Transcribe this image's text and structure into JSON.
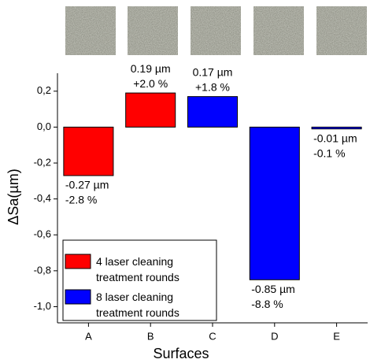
{
  "chart_data": {
    "type": "bar",
    "x_label": "Surfaces",
    "y_label": "ΔSa(µm)",
    "categories": [
      "A",
      "B",
      "C",
      "D",
      "E"
    ],
    "series": [
      {
        "name": "4 laser cleaning treatment rounds",
        "color": "#ff0000",
        "values": [
          -0.27,
          0.19,
          null,
          null,
          null
        ],
        "value_labels": [
          "-0.27 µm",
          "0.19 µm",
          null,
          null,
          null
        ],
        "percent_labels": [
          "-2.8 %",
          "+2.0 %",
          null,
          null,
          null
        ]
      },
      {
        "name": "8 laser cleaning treatment rounds",
        "color": "#0000ff",
        "values": [
          null,
          null,
          0.17,
          -0.85,
          -0.01
        ],
        "value_labels": [
          null,
          null,
          "0.17 µm",
          "-0.85 µm",
          "-0.01 µm"
        ],
        "percent_labels": [
          null,
          null,
          "+1.8 %",
          "-8.8 %",
          "-0.1 %"
        ]
      }
    ],
    "ylim": [
      -1.09,
      0.3
    ],
    "yticks": [
      {
        "value": 0.2,
        "label": "0,2"
      },
      {
        "value": 0,
        "label": "0,0"
      },
      {
        "value": -0.2,
        "label": "-0,2"
      },
      {
        "value": -0.4,
        "label": "-0,4"
      },
      {
        "value": -0.6,
        "label": "-0,6"
      },
      {
        "value": -0.8,
        "label": "-0,8"
      },
      {
        "value": -1.0,
        "label": "-1,0"
      }
    ],
    "grid": false,
    "legend": "lower left"
  }
}
